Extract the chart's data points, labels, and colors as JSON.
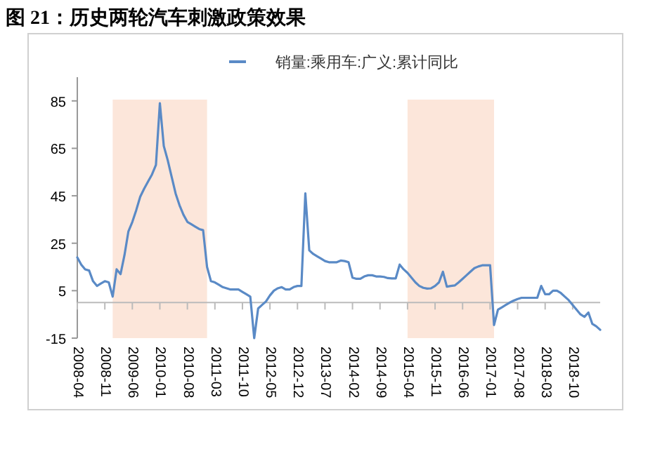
{
  "chart_data": {
    "type": "line",
    "title": "图 21：历史两轮汽车刺激政策效果",
    "x": [
      "2008-04",
      "2008-05",
      "2008-06",
      "2008-07",
      "2008-08",
      "2008-09",
      "2008-10",
      "2008-11",
      "2008-12",
      "2009-01",
      "2009-02",
      "2009-03",
      "2009-04",
      "2009-05",
      "2009-06",
      "2009-07",
      "2009-08",
      "2009-09",
      "2009-10",
      "2009-11",
      "2009-12",
      "2010-01",
      "2010-02",
      "2010-03",
      "2010-04",
      "2010-05",
      "2010-06",
      "2010-07",
      "2010-08",
      "2010-09",
      "2010-10",
      "2010-11",
      "2010-12",
      "2011-01",
      "2011-02",
      "2011-03",
      "2011-04",
      "2011-05",
      "2011-06",
      "2011-07",
      "2011-08",
      "2011-09",
      "2011-10",
      "2011-11",
      "2011-12",
      "2012-01",
      "2012-02",
      "2012-03",
      "2012-04",
      "2012-05",
      "2012-06",
      "2012-07",
      "2012-08",
      "2012-09",
      "2012-10",
      "2012-11",
      "2012-12",
      "2013-01",
      "2013-02",
      "2013-03",
      "2013-04",
      "2013-05",
      "2013-06",
      "2013-07",
      "2013-08",
      "2013-09",
      "2013-10",
      "2013-11",
      "2013-12",
      "2014-01",
      "2014-02",
      "2014-03",
      "2014-04",
      "2014-05",
      "2014-06",
      "2014-07",
      "2014-08",
      "2014-09",
      "2014-10",
      "2014-11",
      "2014-12",
      "2015-01",
      "2015-02",
      "2015-03",
      "2015-04",
      "2015-05",
      "2015-06",
      "2015-07",
      "2015-08",
      "2015-09",
      "2015-10",
      "2015-11",
      "2015-12",
      "2016-01",
      "2016-02",
      "2016-03",
      "2016-04",
      "2016-05",
      "2016-06",
      "2016-07",
      "2016-08",
      "2016-09",
      "2016-10",
      "2016-11",
      "2016-12",
      "2017-01",
      "2017-02",
      "2017-03",
      "2017-04",
      "2017-05",
      "2017-06",
      "2017-07",
      "2017-08",
      "2017-09",
      "2017-10",
      "2017-11",
      "2017-12",
      "2018-01",
      "2018-02",
      "2018-03",
      "2018-04",
      "2018-05",
      "2018-06",
      "2018-07",
      "2018-08",
      "2018-09",
      "2018-10",
      "2018-11",
      "2018-12",
      "2019-01",
      "2019-02",
      "2019-03",
      "2019-04",
      "2019-05"
    ],
    "series": [
      {
        "name": "销量:乘用车:广义:累计同比",
        "color": "#5a8ac6",
        "values": [
          19,
          16,
          14,
          13.5,
          9,
          7,
          8,
          9,
          8.5,
          2.5,
          14,
          12,
          20,
          30,
          34,
          39,
          44.6,
          48,
          51,
          54,
          58,
          84,
          66,
          60,
          53,
          46,
          41,
          37,
          34,
          33,
          32,
          31,
          30.5,
          15,
          9,
          8.5,
          7.5,
          6.5,
          6,
          5.5,
          5.5,
          5.5,
          4.5,
          3.5,
          2.5,
          -15,
          -2.5,
          -1,
          0.5,
          3,
          5,
          6,
          6.5,
          5.5,
          5.5,
          6.5,
          7,
          7,
          46,
          22,
          20.5,
          19.5,
          18.5,
          17.5,
          17,
          17,
          17,
          17.7,
          17.5,
          17,
          10.5,
          10,
          10,
          11,
          11.5,
          11.5,
          11,
          11,
          10.8,
          10.3,
          10.2,
          10.2,
          16,
          14,
          12.5,
          10.5,
          8.5,
          7,
          6.2,
          5.9,
          6,
          7,
          8.5,
          13,
          6.7,
          7,
          7.2,
          8.5,
          10,
          11.5,
          13,
          14.5,
          15.2,
          15.7,
          15.7,
          15.7,
          -9.5,
          -3,
          -2,
          -1,
          0,
          0.8,
          1.5,
          2,
          2,
          2,
          2,
          2,
          7,
          3.5,
          3.5,
          5,
          5,
          4,
          2.5,
          1,
          -1,
          -3,
          -5,
          -6,
          -4.2,
          -9,
          -10,
          -11.5
        ]
      }
    ],
    "xlim": [
      "2008-04",
      "2019-05"
    ],
    "xticks": [
      "2008-04",
      "2008-11",
      "2009-06",
      "2010-01",
      "2010-08",
      "2011-03",
      "2011-10",
      "2012-05",
      "2012-12",
      "2013-07",
      "2014-02",
      "2014-09",
      "2015-04",
      "2015-11",
      "2016-06",
      "2017-01",
      "2017-08",
      "2018-03",
      "2018-10"
    ],
    "ylim": [
      -15,
      95
    ],
    "yticks": [
      -15,
      5,
      25,
      45,
      65,
      85
    ],
    "bands": [
      {
        "axis": "x",
        "from": "2009-01",
        "to": "2011-01",
        "color": "#fce6da"
      },
      {
        "axis": "x",
        "from": "2015-04",
        "to": "2017-02",
        "color": "#fce6da"
      }
    ],
    "legend": "top",
    "grid": false,
    "marker": "none",
    "line_style": "solid"
  }
}
